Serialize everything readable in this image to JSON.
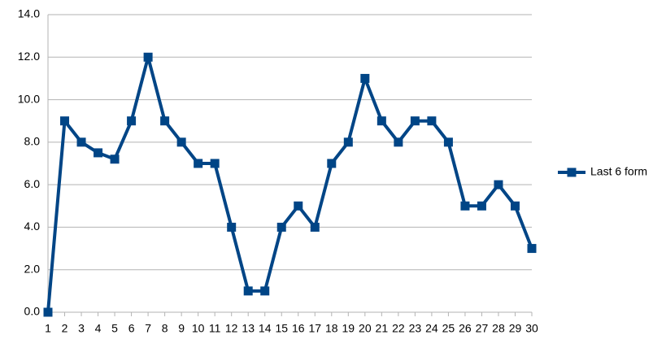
{
  "chart_data": {
    "type": "line",
    "categories": [
      "1",
      "2",
      "3",
      "4",
      "5",
      "6",
      "7",
      "8",
      "9",
      "10",
      "11",
      "12",
      "13",
      "14",
      "15",
      "16",
      "17",
      "18",
      "19",
      "20",
      "21",
      "22",
      "23",
      "24",
      "25",
      "26",
      "27",
      "28",
      "29",
      "30"
    ],
    "series": [
      {
        "name": "Last 6 form",
        "color": "#004586",
        "values": [
          0,
          9,
          8,
          7.5,
          7.2,
          9,
          12,
          9,
          8,
          7,
          7,
          4,
          1,
          1,
          4,
          5,
          4,
          7,
          8,
          11,
          9,
          8,
          9,
          9,
          8,
          5,
          5,
          6,
          5,
          3
        ]
      }
    ],
    "ylim": [
      0,
      14
    ],
    "yticks": [
      {
        "value": 0,
        "label": "0.0"
      },
      {
        "value": 2,
        "label": "2.0"
      },
      {
        "value": 4,
        "label": "4.0"
      },
      {
        "value": 6,
        "label": "6.0"
      },
      {
        "value": 8,
        "label": "8.0"
      },
      {
        "value": 10,
        "label": "10.0"
      },
      {
        "value": 12,
        "label": "12.0"
      },
      {
        "value": 14,
        "label": "14.0"
      }
    ],
    "grid": true,
    "legend": "right"
  }
}
